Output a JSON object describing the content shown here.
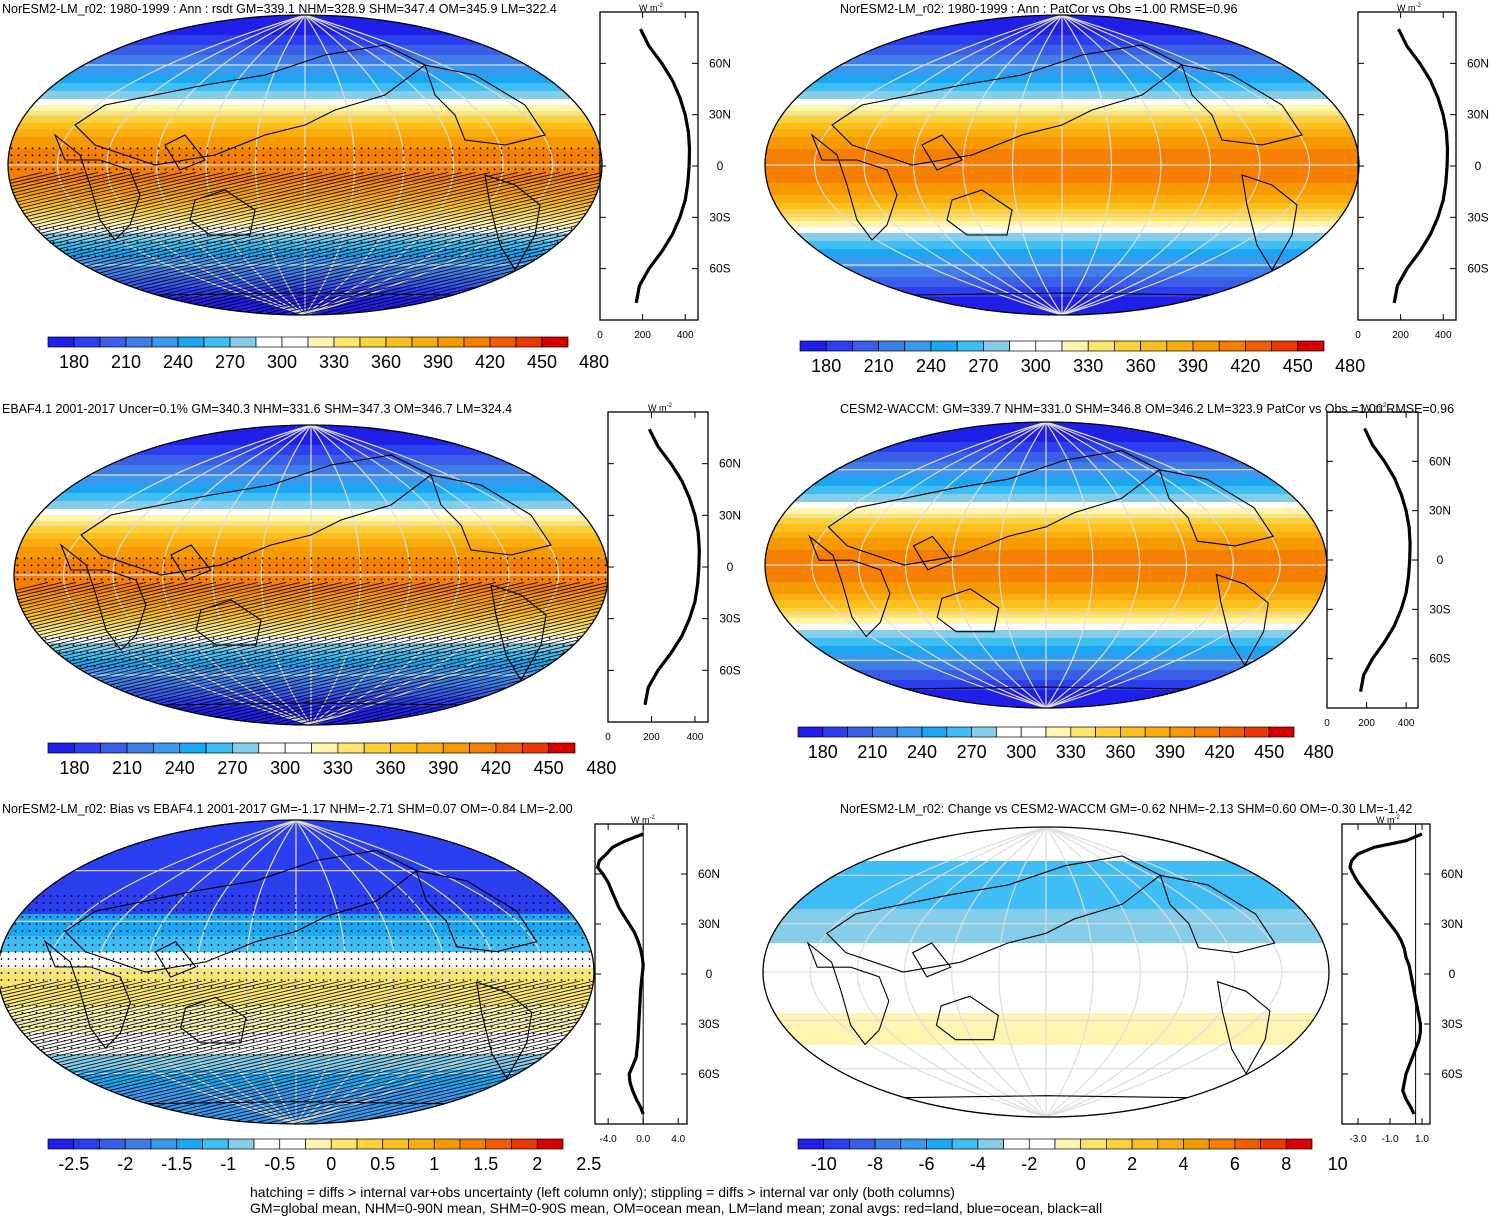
{
  "figure": {
    "footer_line1": "hatching = diffs > internal var+obs uncertainty (left column only); stippling = diffs > internal var only (both columns)",
    "footer_line2": "GM=global mean, NHM=0-90N mean, SHM=0-90S mean, OM=ocean mean, LM=land mean; zonal avgs: red=land, blue=ocean, black=all"
  },
  "colors": {
    "palette": [
      "#1f1fe8",
      "#2b3ef0",
      "#3a5ee8",
      "#3f7ee6",
      "#3a99ee",
      "#1aa6f0",
      "#3fbdf5",
      "#86cdea",
      "#ffffff",
      "#ffffff",
      "#fff5b0",
      "#fde56e",
      "#fcd23c",
      "#fbc020",
      "#f9ad0f",
      "#f79900",
      "#f47f00",
      "#f05d00",
      "#ea3800",
      "#d80000"
    ],
    "land_line": "#000000",
    "grid": "#dddddd",
    "zonal_line": "#000000"
  },
  "chart_data": [
    {
      "type": "heatmap",
      "title": "NorESM2-LM_r02: 1980-1999 : Ann : rsdt GM=339.1 NHM=328.9 SHM=347.4 OM=345.9 LM=322.4",
      "colorbar_ticks": [
        "180",
        "210",
        "240",
        "270",
        "300",
        "330",
        "360",
        "390",
        "420",
        "450",
        "480"
      ],
      "colorbar_range": [
        165,
        495
      ],
      "zonal_units": "W m",
      "zonal_units_sup": "-2",
      "zonal_xticks": [
        "0",
        "200",
        "400"
      ],
      "zonal_xrange": [
        0,
        460
      ],
      "zonal_lat_labels": [
        "60N",
        "30N",
        "0",
        "30S",
        "60S"
      ],
      "zonal_profile": {
        "lat": [
          80,
          70,
          60,
          50,
          40,
          30,
          20,
          10,
          0,
          -10,
          -20,
          -30,
          -40,
          -50,
          -60,
          -70,
          -80
        ],
        "value": [
          190,
          230,
          290,
          340,
          375,
          400,
          415,
          420,
          418,
          412,
          400,
          375,
          340,
          290,
          230,
          185,
          170
        ]
      },
      "hatching": true,
      "stippling": true
    },
    {
      "type": "heatmap",
      "title": "NorESM2-LM_r02: 1980-1999 : Ann : PatCor vs Obs =1.00 RMSE=0.96",
      "colorbar_ticks": [
        "180",
        "210",
        "240",
        "270",
        "300",
        "330",
        "360",
        "390",
        "420",
        "450",
        "480"
      ],
      "colorbar_range": [
        165,
        495
      ],
      "zonal_units": "W m",
      "zonal_units_sup": "-2",
      "zonal_xticks": [
        "0",
        "200",
        "400"
      ],
      "zonal_xrange": [
        0,
        460
      ],
      "zonal_lat_labels": [
        "60N",
        "30N",
        "0",
        "30S",
        "60S"
      ],
      "zonal_profile": {
        "lat": [
          80,
          70,
          60,
          50,
          40,
          30,
          20,
          10,
          0,
          -10,
          -20,
          -30,
          -40,
          -50,
          -60,
          -70,
          -80
        ],
        "value": [
          190,
          230,
          290,
          340,
          375,
          400,
          415,
          420,
          418,
          412,
          400,
          375,
          340,
          290,
          230,
          185,
          170
        ]
      },
      "hatching": false,
      "stippling": false
    },
    {
      "type": "heatmap",
      "title": "EBAF4.1 2001-2017 Uncer=0.1% GM=340.3 NHM=331.6 SHM=347.3 OM=346.7 LM=324.4",
      "colorbar_ticks": [
        "180",
        "210",
        "240",
        "270",
        "300",
        "330",
        "360",
        "390",
        "420",
        "450",
        "480"
      ],
      "colorbar_range": [
        165,
        495
      ],
      "zonal_units": "W m",
      "zonal_units_sup": "-2",
      "zonal_xticks": [
        "0",
        "200",
        "400"
      ],
      "zonal_xrange": [
        0,
        460
      ],
      "zonal_lat_labels": [
        "60N",
        "30N",
        "0",
        "30S",
        "60S"
      ],
      "zonal_profile": {
        "lat": [
          80,
          70,
          60,
          50,
          40,
          30,
          20,
          10,
          0,
          -10,
          -20,
          -30,
          -40,
          -50,
          -60,
          -70,
          -80
        ],
        "value": [
          190,
          230,
          290,
          340,
          375,
          400,
          415,
          420,
          418,
          412,
          400,
          375,
          340,
          290,
          230,
          185,
          170
        ]
      },
      "hatching": true,
      "stippling": true
    },
    {
      "type": "heatmap",
      "title": "CESM2-WACCM: GM=339.7 NHM=331.0 SHM=346.8 OM=346.2 LM=323.9 PatCor vs Obs =1.00 RMSE=0.96",
      "colorbar_ticks": [
        "180",
        "210",
        "240",
        "270",
        "300",
        "330",
        "360",
        "390",
        "420",
        "450",
        "480"
      ],
      "colorbar_range": [
        165,
        495
      ],
      "zonal_units": "W m",
      "zonal_units_sup": "-2",
      "zonal_xticks": [
        "0",
        "200",
        "400"
      ],
      "zonal_xrange": [
        0,
        460
      ],
      "zonal_lat_labels": [
        "60N",
        "30N",
        "0",
        "30S",
        "60S"
      ],
      "zonal_profile": {
        "lat": [
          80,
          70,
          60,
          50,
          40,
          30,
          20,
          10,
          0,
          -10,
          -20,
          -30,
          -40,
          -50,
          -60,
          -70,
          -80
        ],
        "value": [
          190,
          230,
          290,
          340,
          375,
          400,
          415,
          420,
          418,
          412,
          400,
          375,
          340,
          290,
          230,
          185,
          170
        ]
      },
      "hatching": false,
      "stippling": false
    },
    {
      "type": "heatmap",
      "title": "NorESM2-LM_r02: Bias vs EBAF4.1 2001-2017 GM=-1.17 NHM=-2.71 SHM=0.07 OM=-0.84 LM=-2.00",
      "colorbar_ticks": [
        "-2.5",
        "-2",
        "-1.5",
        "-1",
        "-0.5",
        "0",
        "0.5",
        "1",
        "1.5",
        "2",
        "2.5"
      ],
      "colorbar_range": [
        -2.75,
        2.75
      ],
      "zonal_units": "W m",
      "zonal_units_sup": "-2",
      "zonal_xticks": [
        "-4.0",
        "0.0",
        "4.0"
      ],
      "zonal_xrange": [
        -5.5,
        5.0
      ],
      "zonal_lat_labels": [
        "60N",
        "30N",
        "0",
        "30S",
        "60S"
      ],
      "zonal_profile": {
        "lat": [
          84,
          80,
          76,
          72,
          68,
          64,
          60,
          55,
          50,
          45,
          40,
          35,
          30,
          25,
          20,
          15,
          10,
          5,
          0,
          -5,
          -10,
          -20,
          -30,
          -40,
          -50,
          -55,
          -60,
          -65,
          -70,
          -75,
          -80,
          -84
        ],
        "value": [
          0.0,
          -2.0,
          -3.5,
          -4.2,
          -5.0,
          -5.2,
          -4.6,
          -4.0,
          -3.6,
          -3.2,
          -2.8,
          -2.2,
          -1.6,
          -1.0,
          -0.6,
          -0.3,
          -0.1,
          0.0,
          -0.1,
          -0.2,
          -0.3,
          -0.4,
          -0.5,
          -0.6,
          -0.8,
          -1.2,
          -1.6,
          -1.5,
          -1.2,
          -0.8,
          -0.3,
          0.0
        ]
      },
      "hatching": true,
      "stippling": true
    },
    {
      "type": "heatmap",
      "title": "NorESM2-LM_r02: Change vs CESM2-WACCM GM=-0.62 NHM=-2.13 SHM=0.60 OM=-0.30 LM=-1.42",
      "colorbar_ticks": [
        "-10",
        "-8",
        "-6",
        "-4",
        "-2",
        "0",
        "2",
        "4",
        "6",
        "8",
        "10"
      ],
      "colorbar_range": [
        -11,
        11
      ],
      "zonal_units": "W m",
      "zonal_units_sup": "-2",
      "zonal_xticks": [
        "-3.0",
        "-1.0",
        "1.0"
      ],
      "zonal_xrange": [
        -4.0,
        1.5
      ],
      "zonal_lat_labels": [
        "60N",
        "30N",
        "0",
        "30S",
        "60S"
      ],
      "zonal_profile": {
        "lat": [
          84,
          80,
          76,
          72,
          68,
          64,
          60,
          55,
          50,
          45,
          40,
          35,
          30,
          25,
          20,
          15,
          10,
          5,
          0,
          -5,
          -10,
          -15,
          -20,
          -25,
          -30,
          -35,
          -40,
          -45,
          -50,
          -55,
          -60,
          -65,
          -70,
          -75,
          -80,
          -84
        ],
        "value": [
          1.0,
          0.0,
          -2.0,
          -3.0,
          -3.4,
          -3.5,
          -3.3,
          -3.0,
          -2.6,
          -2.2,
          -1.8,
          -1.4,
          -1.0,
          -0.6,
          -0.3,
          -0.1,
          0.0,
          0.2,
          0.3,
          0.4,
          0.5,
          0.6,
          0.7,
          0.8,
          0.9,
          0.9,
          0.8,
          0.6,
          0.4,
          0.2,
          0.0,
          -0.1,
          -0.2,
          0.0,
          0.3,
          0.5
        ]
      },
      "hatching": false,
      "stippling": true
    }
  ]
}
